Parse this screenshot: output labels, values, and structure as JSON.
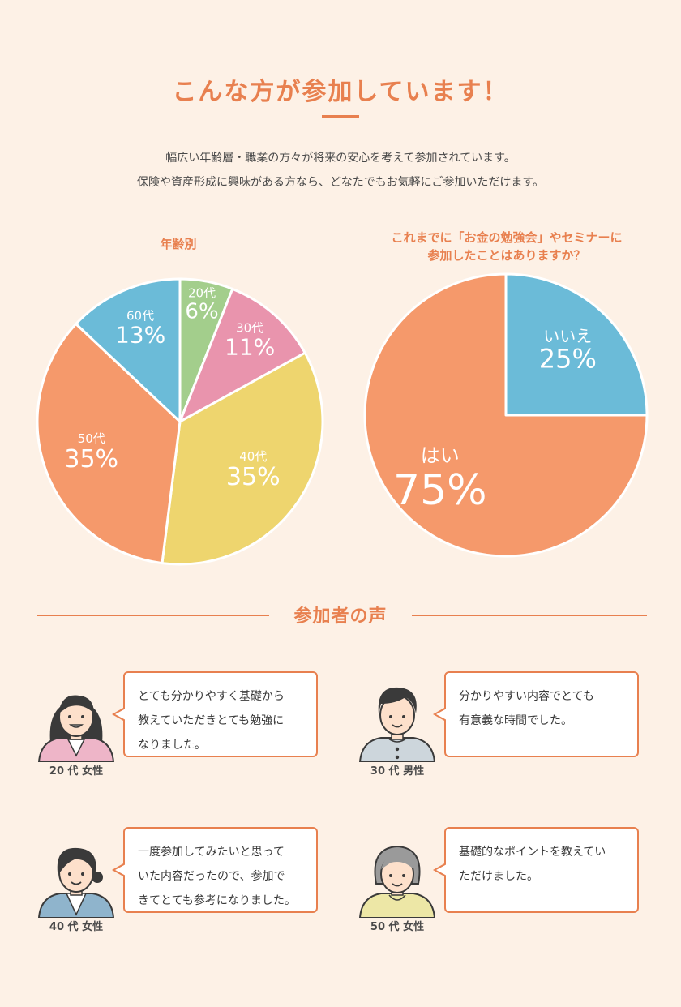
{
  "header": {
    "title": "こんな方が参加しています！",
    "lead_line1": "幅広い年齢層・職業の方々が将来の安心を考えて参加されています。",
    "lead_line2": "保険や資産形成に興味がある方なら、どなたでもお気軽にご参加いただけます。"
  },
  "chart_data": [
    {
      "type": "pie",
      "title": "年齢別",
      "categories": [
        "20代",
        "30代",
        "40代",
        "50代",
        "60代"
      ],
      "values": [
        6,
        11,
        35,
        35,
        13
      ],
      "value_labels": [
        "6%",
        "11%",
        "35%",
        "35%",
        "13%"
      ],
      "colors": [
        "#a3ce8c",
        "#e994ad",
        "#eed56e",
        "#f5996b",
        "#6bbbd8"
      ]
    },
    {
      "type": "pie",
      "title_line1": "これまでに「お金の勉強会」やセミナーに",
      "title_line2": "参加したことはありますか？",
      "categories": [
        "いいえ",
        "はい"
      ],
      "values": [
        25,
        75
      ],
      "value_labels": [
        "25%",
        "75%"
      ],
      "colors": [
        "#6bbbd8",
        "#f5996b"
      ]
    }
  ],
  "voices_section": {
    "title": "参加者の声",
    "items": [
      {
        "who": "20 代 女性",
        "text": [
          "とても分かりやすく基礎から",
          "教えていただきとても勉強に",
          "なりました。"
        ]
      },
      {
        "who": "30 代 男性",
        "text": [
          "分かりやすい内容でとても",
          "有意義な時間でした。"
        ]
      },
      {
        "who": "40 代 女性",
        "text": [
          "一度参加してみたいと思って",
          "いた内容だったので、参加で",
          "きてとても参考になりました。"
        ]
      },
      {
        "who": "50 代 女性",
        "text": [
          "基礎的なポイントを教えてい",
          "ただけました。"
        ]
      }
    ]
  }
}
